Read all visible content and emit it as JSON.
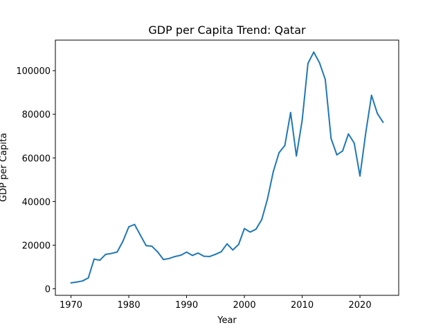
{
  "chart_data": {
    "type": "line",
    "title": "GDP per Capita Trend: Qatar",
    "xlabel": "Year",
    "ylabel": "GDP per Capita",
    "xlim": [
      1967.3,
      2026.7
    ],
    "ylim": [
      -3000,
      114000
    ],
    "xticks": [
      1970,
      1980,
      1990,
      2000,
      2010,
      2020
    ],
    "yticks": [
      0,
      20000,
      40000,
      60000,
      80000,
      100000
    ],
    "grid": false,
    "legend": "none",
    "series": [
      {
        "color": "#1f77b4",
        "x": [
          1970,
          1971,
          1972,
          1973,
          1974,
          1975,
          1976,
          1977,
          1978,
          1979,
          1980,
          1981,
          1982,
          1983,
          1984,
          1985,
          1986,
          1987,
          1988,
          1989,
          1990,
          1991,
          1992,
          1993,
          1994,
          1995,
          1996,
          1997,
          1998,
          1999,
          2000,
          2001,
          2002,
          2003,
          2004,
          2005,
          2006,
          2007,
          2008,
          2009,
          2010,
          2011,
          2012,
          2013,
          2014,
          2015,
          2016,
          2017,
          2018,
          2019,
          2020,
          2021,
          2022,
          2023,
          2024
        ],
        "values": [
          2700,
          3100,
          3600,
          5000,
          13600,
          13100,
          15800,
          16200,
          16900,
          21900,
          28400,
          29500,
          24600,
          19800,
          19500,
          16900,
          13400,
          13900,
          14800,
          15400,
          16800,
          15300,
          16400,
          14900,
          14800,
          15800,
          17000,
          20600,
          17800,
          20300,
          27600,
          26000,
          27300,
          31700,
          41200,
          53700,
          62400,
          65700,
          80800,
          60900,
          77200,
          103300,
          108500,
          103600,
          95900,
          68900,
          61400,
          63200,
          71000,
          66800,
          51700,
          71500,
          88700,
          80400,
          76300
        ]
      }
    ]
  }
}
